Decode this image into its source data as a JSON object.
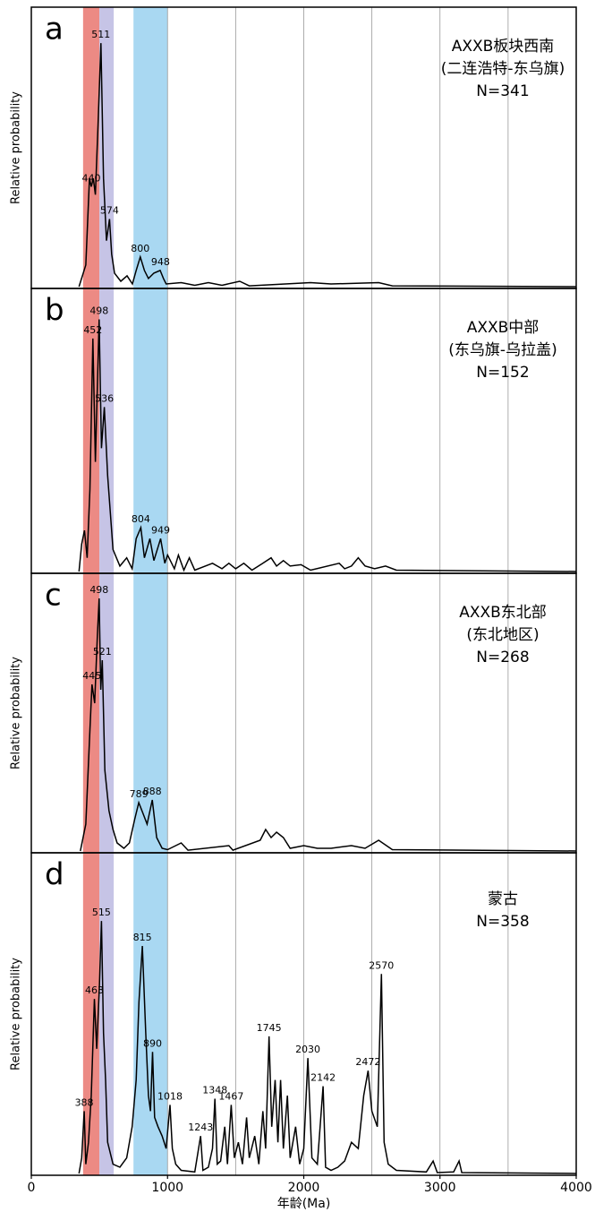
{
  "bands": [
    {
      "from": 380,
      "to": 500,
      "color": "#ec8a84"
    },
    {
      "from": 500,
      "to": 605,
      "color": "#c6c4e6"
    },
    {
      "from": 750,
      "to": 1000,
      "color": "#a9d8f2"
    }
  ],
  "grid_x": [
    1000,
    1500,
    2000,
    2500,
    3000,
    3500
  ],
  "chart_data": [
    {
      "type": "line",
      "label": "a",
      "title": [
        "AXXB板块西南",
        "(二连浩特-东乌旗)",
        "N=341"
      ],
      "ylabel": "Relative probability",
      "xlim": [
        0,
        4000
      ],
      "ylim": [
        0,
        100
      ],
      "x": [
        350,
        400,
        427,
        440,
        455,
        470,
        490,
        511,
        530,
        552,
        574,
        590,
        611,
        657,
        703,
        742,
        770,
        800,
        830,
        860,
        900,
        946,
        970,
        990,
        1100,
        1200,
        1300,
        1400,
        1530,
        1600,
        2050,
        2200,
        2550,
        2650,
        4000
      ],
      "values": [
        0,
        8,
        40,
        37,
        40,
        34,
        60,
        90,
        40,
        17,
        25,
        12,
        5,
        2,
        4,
        1,
        6,
        11,
        6,
        3,
        5,
        6,
        3,
        1,
        1.5,
        0.5,
        1.5,
        0.5,
        2,
        0.3,
        1.5,
        1,
        1.5,
        0.3,
        0
      ],
      "peaks": [
        {
          "x": 440,
          "y": 37
        },
        {
          "x": 511,
          "y": 90
        },
        {
          "x": 574,
          "y": 25
        },
        {
          "x": 800,
          "y": 11
        },
        {
          "x": 948,
          "y": 6
        }
      ]
    },
    {
      "type": "line",
      "label": "b",
      "title": [
        "AXXB中部",
        "(东乌旗-乌拉盖)",
        "N=152"
      ],
      "xlim": [
        0,
        4000
      ],
      "ylim": [
        0,
        100
      ],
      "x": [
        350,
        370,
        390,
        410,
        430,
        452,
        470,
        498,
        515,
        536,
        560,
        600,
        650,
        700,
        740,
        770,
        804,
        830,
        870,
        900,
        949,
        980,
        1000,
        1050,
        1080,
        1120,
        1160,
        1200,
        1330,
        1400,
        1450,
        1500,
        1560,
        1620,
        1700,
        1760,
        1800,
        1850,
        1900,
        1980,
        2050,
        2260,
        2300,
        2350,
        2400,
        2450,
        2520,
        2600,
        2680,
        4000
      ],
      "values": [
        0,
        10,
        15,
        5,
        30,
        85,
        40,
        92,
        45,
        60,
        35,
        8,
        2,
        5,
        1,
        12,
        16,
        5,
        12,
        4,
        12,
        3,
        6,
        1,
        6,
        0.5,
        5,
        0.5,
        3,
        1,
        3,
        1,
        3,
        0.5,
        3,
        5,
        2,
        4,
        2,
        2.5,
        0.5,
        3,
        1,
        2,
        5,
        2,
        1,
        2,
        0.5,
        0
      ],
      "peaks": [
        {
          "x": 452,
          "y": 85
        },
        {
          "x": 498,
          "y": 92
        },
        {
          "x": 536,
          "y": 60
        },
        {
          "x": 804,
          "y": 16
        },
        {
          "x": 949,
          "y": 12
        }
      ]
    },
    {
      "type": "line",
      "label": "c",
      "title": [
        "AXXB东北部",
        "(东北地区)",
        "N=268"
      ],
      "ylabel": "Relative probability",
      "xlim": [
        0,
        4000
      ],
      "ylim": [
        0,
        100
      ],
      "x": [
        360,
        400,
        430,
        445,
        465,
        485,
        498,
        510,
        521,
        540,
        570,
        600,
        630,
        680,
        720,
        760,
        789,
        820,
        850,
        888,
        920,
        960,
        1000,
        1100,
        1150,
        1450,
        1480,
        1680,
        1720,
        1760,
        1800,
        1850,
        1900,
        2000,
        2100,
        2200,
        2350,
        2450,
        2550,
        2650,
        4000
      ],
      "values": [
        0,
        10,
        45,
        62,
        55,
        80,
        94,
        60,
        71,
        30,
        15,
        8,
        3,
        1,
        3,
        12,
        18,
        14,
        10,
        19,
        5,
        1,
        0.5,
        3,
        0.3,
        2,
        0.3,
        4,
        8,
        5,
        7,
        5,
        1,
        2,
        1,
        1,
        2,
        1,
        4,
        0.5,
        0
      ],
      "peaks": [
        {
          "x": 445,
          "y": 62
        },
        {
          "x": 498,
          "y": 94
        },
        {
          "x": 521,
          "y": 71
        },
        {
          "x": 789,
          "y": 18
        },
        {
          "x": 888,
          "y": 19
        }
      ]
    },
    {
      "type": "line",
      "label": "d",
      "title": [
        "蒙古",
        "N=358"
      ],
      "ylabel": "Relative probability",
      "xlim": [
        0,
        4000
      ],
      "ylim": [
        0,
        100
      ],
      "xticks": [
        0,
        1000,
        2000,
        3000,
        4000
      ],
      "xlabel": "年龄(Ma)",
      "x": [
        350,
        370,
        388,
        400,
        420,
        440,
        463,
        480,
        500,
        515,
        530,
        545,
        560,
        600,
        650,
        700,
        740,
        770,
        790,
        815,
        840,
        860,
        875,
        890,
        905,
        930,
        960,
        990,
        1018,
        1035,
        1060,
        1100,
        1200,
        1243,
        1260,
        1300,
        1330,
        1348,
        1365,
        1390,
        1420,
        1440,
        1467,
        1490,
        1520,
        1550,
        1580,
        1600,
        1640,
        1670,
        1700,
        1720,
        1745,
        1765,
        1790,
        1810,
        1830,
        1850,
        1880,
        1900,
        1940,
        1970,
        2000,
        2030,
        2060,
        2100,
        2142,
        2160,
        2200,
        2250,
        2300,
        2350,
        2400,
        2440,
        2472,
        2500,
        2540,
        2570,
        2590,
        2620,
        2680,
        2900,
        2950,
        2980,
        3100,
        3140,
        3160,
        4000
      ],
      "values": [
        0,
        5,
        20,
        3,
        10,
        25,
        56,
        40,
        60,
        81,
        45,
        30,
        10,
        3,
        2,
        5,
        15,
        30,
        55,
        73,
        45,
        25,
        20,
        39,
        18,
        15,
        12,
        8,
        22,
        8,
        3,
        1,
        0.5,
        12,
        1,
        2,
        8,
        24,
        3,
        4,
        15,
        3,
        22,
        5,
        10,
        3,
        18,
        5,
        12,
        3,
        20,
        8,
        44,
        15,
        30,
        10,
        30,
        8,
        25,
        5,
        15,
        3,
        8,
        37,
        5,
        3,
        28,
        2,
        1,
        2,
        4,
        10,
        8,
        25,
        33,
        20,
        15,
        64,
        10,
        3,
        1,
        0.5,
        4,
        0.3,
        0.5,
        4,
        0.3,
        0
      ],
      "peaks": [
        {
          "x": 388,
          "y": 20
        },
        {
          "x": 463,
          "y": 56
        },
        {
          "x": 515,
          "y": 81
        },
        {
          "x": 815,
          "y": 73
        },
        {
          "x": 890,
          "y": 39
        },
        {
          "x": 1018,
          "y": 22
        },
        {
          "x": 1243,
          "y": 12
        },
        {
          "x": 1348,
          "y": 24
        },
        {
          "x": 1467,
          "y": 22
        },
        {
          "x": 1745,
          "y": 44
        },
        {
          "x": 2030,
          "y": 37
        },
        {
          "x": 2142,
          "y": 28
        },
        {
          "x": 2472,
          "y": 33
        },
        {
          "x": 2570,
          "y": 64
        }
      ]
    }
  ]
}
